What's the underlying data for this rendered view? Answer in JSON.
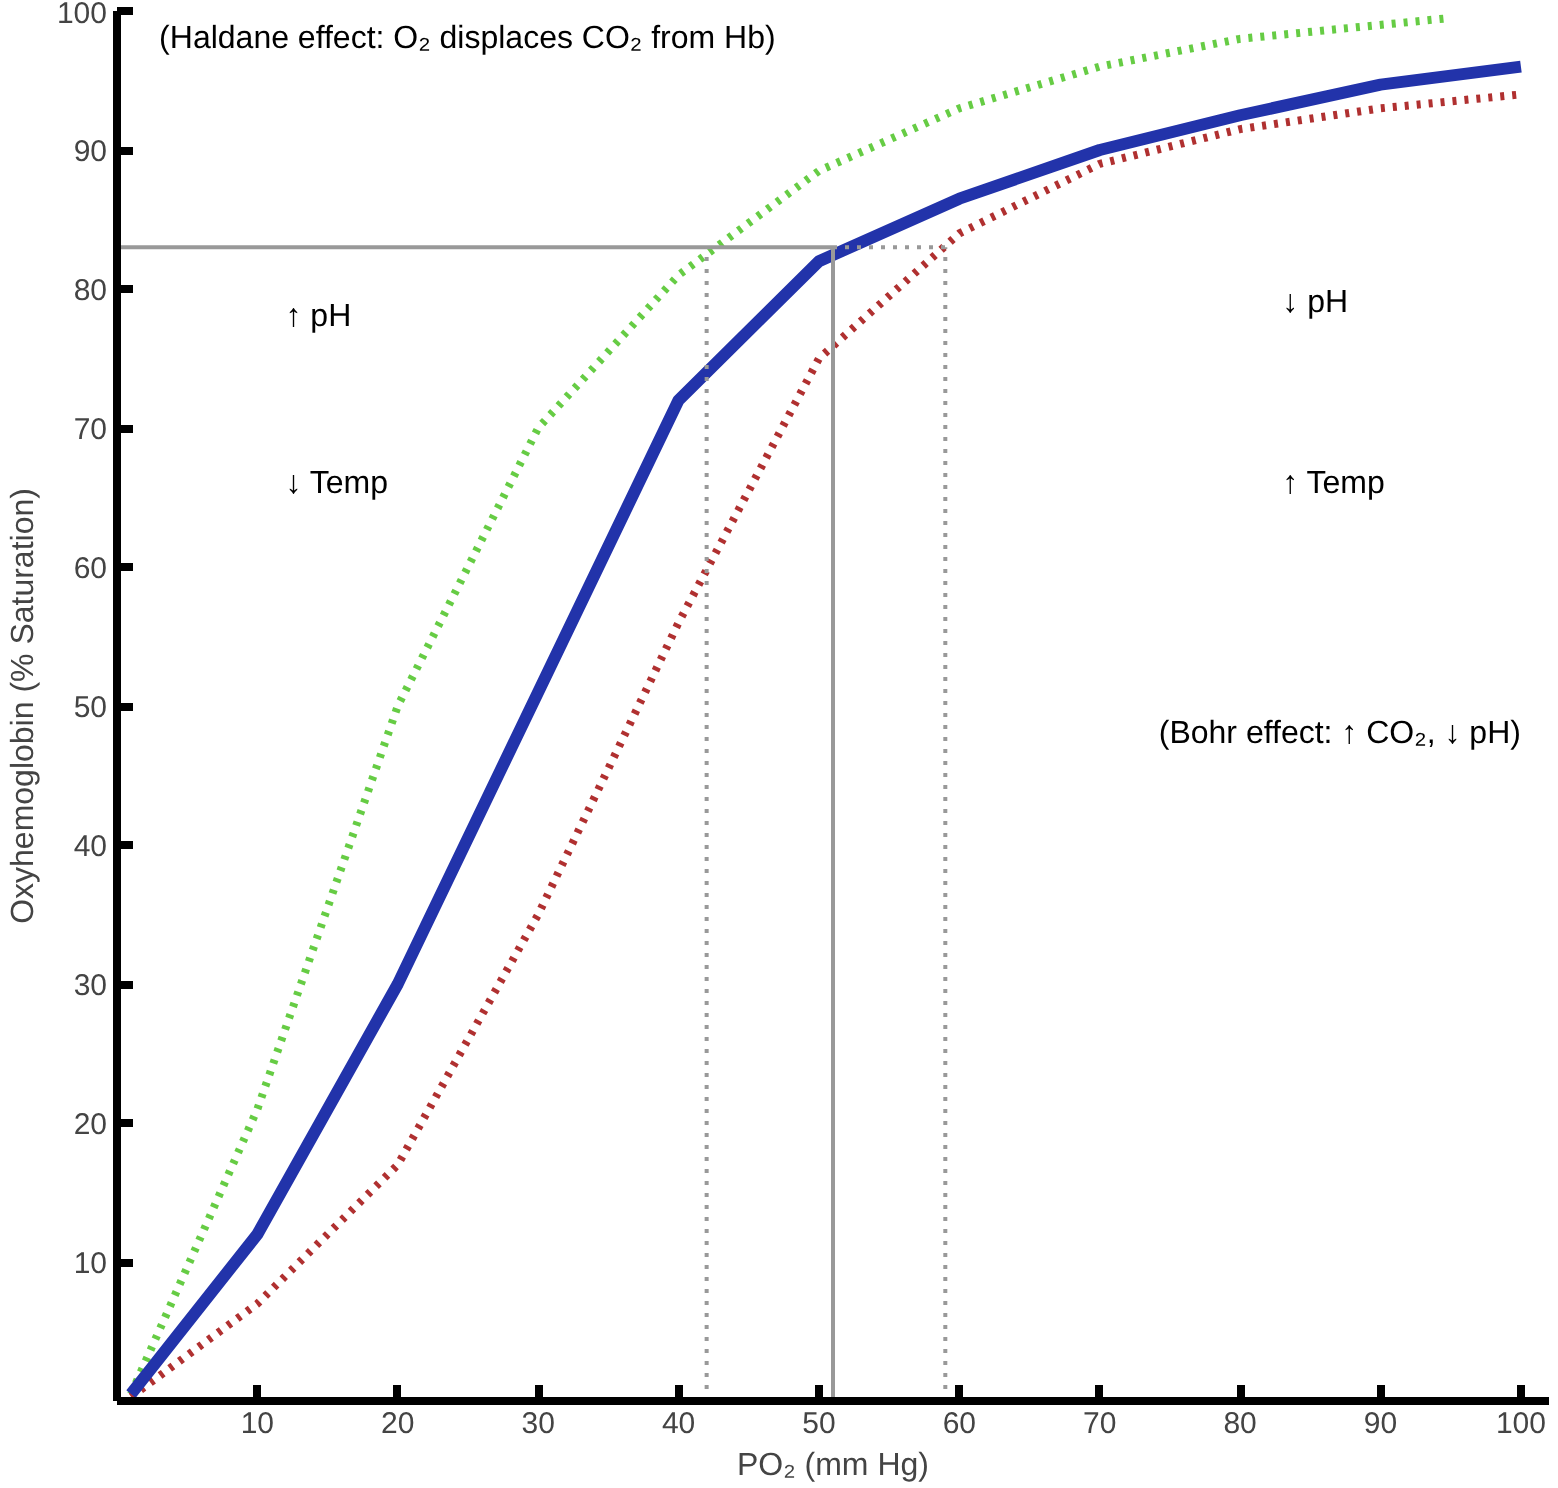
{
  "chart_data": {
    "type": "line",
    "xlabel": "PO₂ (mm Hg)",
    "ylabel": "Oxyhemoglobin (% Saturation)",
    "xlim": [
      0,
      102
    ],
    "ylim": [
      0,
      100
    ],
    "xticks": [
      10,
      20,
      30,
      40,
      50,
      60,
      70,
      80,
      90,
      100
    ],
    "yticks": [
      10,
      20,
      30,
      40,
      50,
      60,
      70,
      80,
      90,
      100
    ],
    "grid": false,
    "annotations": [
      "(Haldane effect: O₂ displaces CO₂ from Hb)",
      "↑ pH",
      "↓ Temp",
      "↓ pH",
      "↑ Temp",
      "(Bohr effect: ↑ CO₂, ↓ pH)"
    ],
    "series": [
      {
        "color": "#66cc44",
        "line_style": "dotted",
        "x": [
          1,
          10,
          20,
          30,
          40,
          50,
          60,
          70,
          80,
          95
        ],
        "values": [
          0.5,
          21,
          50,
          70,
          81,
          88.5,
          93,
          96,
          98,
          99.5
        ]
      },
      {
        "color": "#b03030",
        "line_style": "dotted",
        "x": [
          1,
          10,
          20,
          30,
          40,
          50,
          60,
          70,
          80,
          90,
          100
        ],
        "values": [
          0.3,
          7,
          17,
          35,
          56,
          75,
          84,
          89,
          91.5,
          93,
          94
        ]
      },
      {
        "color": "#2233aa",
        "line_style": "solid",
        "x": [
          1,
          10,
          20,
          30,
          40,
          50,
          60,
          70,
          80,
          90,
          100
        ],
        "values": [
          0.5,
          12,
          30,
          51,
          72,
          82,
          86.5,
          90,
          92.5,
          94.7,
          96
        ]
      },
      {
        "color": "#999999",
        "line_style": "solid",
        "x": [
          0,
          51
        ],
        "values": [
          83,
          83
        ]
      },
      {
        "color": "#999999",
        "line_style": "solid",
        "x": [
          51,
          51
        ],
        "values": [
          0,
          83
        ]
      },
      {
        "color": "#999999",
        "line_style": "dotted",
        "x": [
          51,
          59
        ],
        "values": [
          83,
          83
        ]
      },
      {
        "color": "#999999",
        "line_style": "dotted",
        "x": [
          42,
          42
        ],
        "values": [
          0,
          83
        ]
      },
      {
        "color": "#999999",
        "line_style": "dotted",
        "x": [
          59,
          59
        ],
        "values": [
          0,
          83
        ]
      }
    ]
  }
}
